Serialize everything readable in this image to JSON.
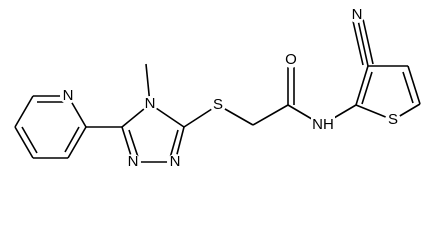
{
  "molecule": {
    "atoms": [
      {
        "label": "N"
      },
      {
        "label": "N"
      },
      {
        "label": "N"
      },
      {
        "label": "N"
      },
      {
        "label": "S"
      },
      {
        "label": "O"
      },
      {
        "label": "NH"
      },
      {
        "label": "S"
      },
      {
        "label": "N"
      }
    ]
  }
}
